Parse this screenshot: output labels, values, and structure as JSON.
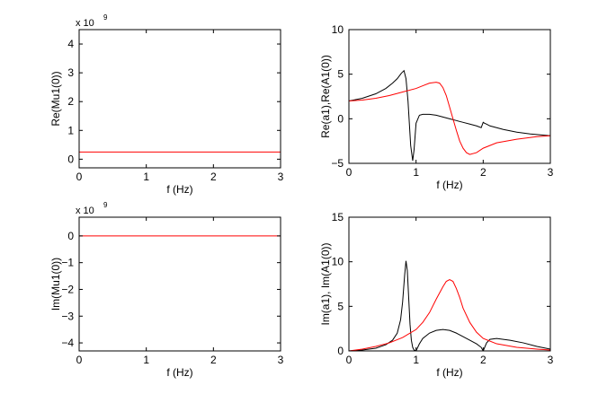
{
  "chart_data": [
    {
      "type": "line",
      "xlabel": "f (Hz)",
      "ylabel": "Re(Mu1(0))",
      "exponent_label": "x 10",
      "exponent_power": "9",
      "xlim": [
        0,
        3
      ],
      "ylim": [
        -0.3,
        4.5
      ],
      "xticks": [
        0,
        1,
        2,
        3
      ],
      "yticks": [
        0,
        1,
        2,
        3,
        4
      ],
      "grid": false,
      "series": [
        {
          "color": "#ff0000",
          "x": [
            0,
            3
          ],
          "y": [
            0.25,
            0.25
          ]
        }
      ]
    },
    {
      "type": "line",
      "xlabel": "f (Hz)",
      "ylabel": "Re(a1),Re(A1(0))",
      "xlim": [
        0,
        3
      ],
      "ylim": [
        -5,
        10
      ],
      "xticks": [
        0,
        1,
        2,
        3
      ],
      "yticks": [
        -5,
        0,
        5,
        10
      ],
      "grid": false,
      "series": [
        {
          "color": "#000000",
          "x": [
            0,
            0.2,
            0.4,
            0.55,
            0.65,
            0.72,
            0.78,
            0.82,
            0.85,
            0.88,
            0.9,
            0.92,
            0.95,
            0.97,
            1.0,
            1.05,
            1.1,
            1.2,
            1.3,
            1.4,
            1.5,
            1.6,
            1.7,
            1.8,
            1.9,
            1.97,
            2.0,
            2.02,
            2.05,
            2.1,
            2.3,
            2.5,
            2.7,
            3.0
          ],
          "y": [
            2.0,
            2.3,
            2.8,
            3.4,
            4.0,
            4.5,
            5.1,
            5.4,
            4.5,
            2.0,
            -0.5,
            -3.0,
            -4.7,
            -3.5,
            -0.5,
            0.4,
            0.5,
            0.5,
            0.4,
            0.2,
            0.0,
            -0.2,
            -0.4,
            -0.6,
            -0.8,
            -1.0,
            -0.4,
            -0.5,
            -0.6,
            -0.8,
            -1.2,
            -1.5,
            -1.7,
            -1.9
          ]
        },
        {
          "color": "#ff0000",
          "x": [
            0,
            0.2,
            0.4,
            0.6,
            0.8,
            1.0,
            1.1,
            1.2,
            1.3,
            1.35,
            1.4,
            1.45,
            1.5,
            1.55,
            1.6,
            1.65,
            1.7,
            1.75,
            1.8,
            1.9,
            2.0,
            2.2,
            2.5,
            2.8,
            3.0
          ],
          "y": [
            2.0,
            2.1,
            2.3,
            2.6,
            3.0,
            3.4,
            3.7,
            4.0,
            4.1,
            4.0,
            3.5,
            2.6,
            1.3,
            0.0,
            -1.3,
            -2.5,
            -3.3,
            -3.8,
            -4.0,
            -3.8,
            -3.3,
            -2.7,
            -2.3,
            -2.0,
            -1.9
          ]
        }
      ]
    },
    {
      "type": "line",
      "xlabel": "f (Hz)",
      "ylabel": "Im(Mu1(0))",
      "exponent_label": "x 10",
      "exponent_power": "9",
      "xlim": [
        0,
        3
      ],
      "ylim": [
        -4.3,
        0.7
      ],
      "xticks": [
        0,
        1,
        2,
        3
      ],
      "yticks": [
        -4,
        -3,
        -2,
        -1,
        0
      ],
      "grid": false,
      "series": [
        {
          "color": "#ff0000",
          "x": [
            0,
            3
          ],
          "y": [
            0,
            0
          ]
        }
      ]
    },
    {
      "type": "line",
      "xlabel": "f (Hz)",
      "ylabel": "Im(a1), Im(A1(0))",
      "xlim": [
        0,
        3
      ],
      "ylim": [
        0,
        15
      ],
      "xticks": [
        0,
        1,
        2,
        3
      ],
      "yticks": [
        0,
        5,
        10,
        15
      ],
      "grid": false,
      "series": [
        {
          "color": "#000000",
          "x": [
            0,
            0.2,
            0.4,
            0.55,
            0.65,
            0.72,
            0.77,
            0.8,
            0.83,
            0.85,
            0.87,
            0.89,
            0.91,
            0.93,
            0.95,
            0.97,
            1.0,
            1.05,
            1.1,
            1.2,
            1.3,
            1.4,
            1.5,
            1.6,
            1.7,
            1.8,
            1.9,
            1.97,
            2.0,
            2.05,
            2.1,
            2.2,
            2.4,
            2.6,
            2.8,
            3.0
          ],
          "y": [
            0.0,
            0.1,
            0.3,
            0.7,
            1.2,
            2.0,
            3.5,
            5.5,
            8.5,
            10.1,
            9.0,
            6.0,
            3.0,
            1.2,
            0.4,
            0.1,
            0.0,
            0.8,
            1.4,
            2.0,
            2.3,
            2.4,
            2.3,
            2.0,
            1.6,
            1.2,
            0.8,
            0.4,
            0.0,
            0.9,
            1.3,
            1.4,
            1.2,
            0.9,
            0.5,
            0.2
          ]
        },
        {
          "color": "#ff0000",
          "x": [
            0,
            0.2,
            0.4,
            0.6,
            0.8,
            1.0,
            1.1,
            1.2,
            1.3,
            1.4,
            1.45,
            1.5,
            1.55,
            1.6,
            1.65,
            1.7,
            1.8,
            1.9,
            2.0,
            2.2,
            2.5,
            2.8,
            3.0
          ],
          "y": [
            0.0,
            0.2,
            0.5,
            0.9,
            1.5,
            2.4,
            3.2,
            4.3,
            5.8,
            7.2,
            7.8,
            8.0,
            7.8,
            7.0,
            6.0,
            4.8,
            3.2,
            2.1,
            1.4,
            0.8,
            0.4,
            0.2,
            0.1
          ]
        }
      ]
    }
  ]
}
